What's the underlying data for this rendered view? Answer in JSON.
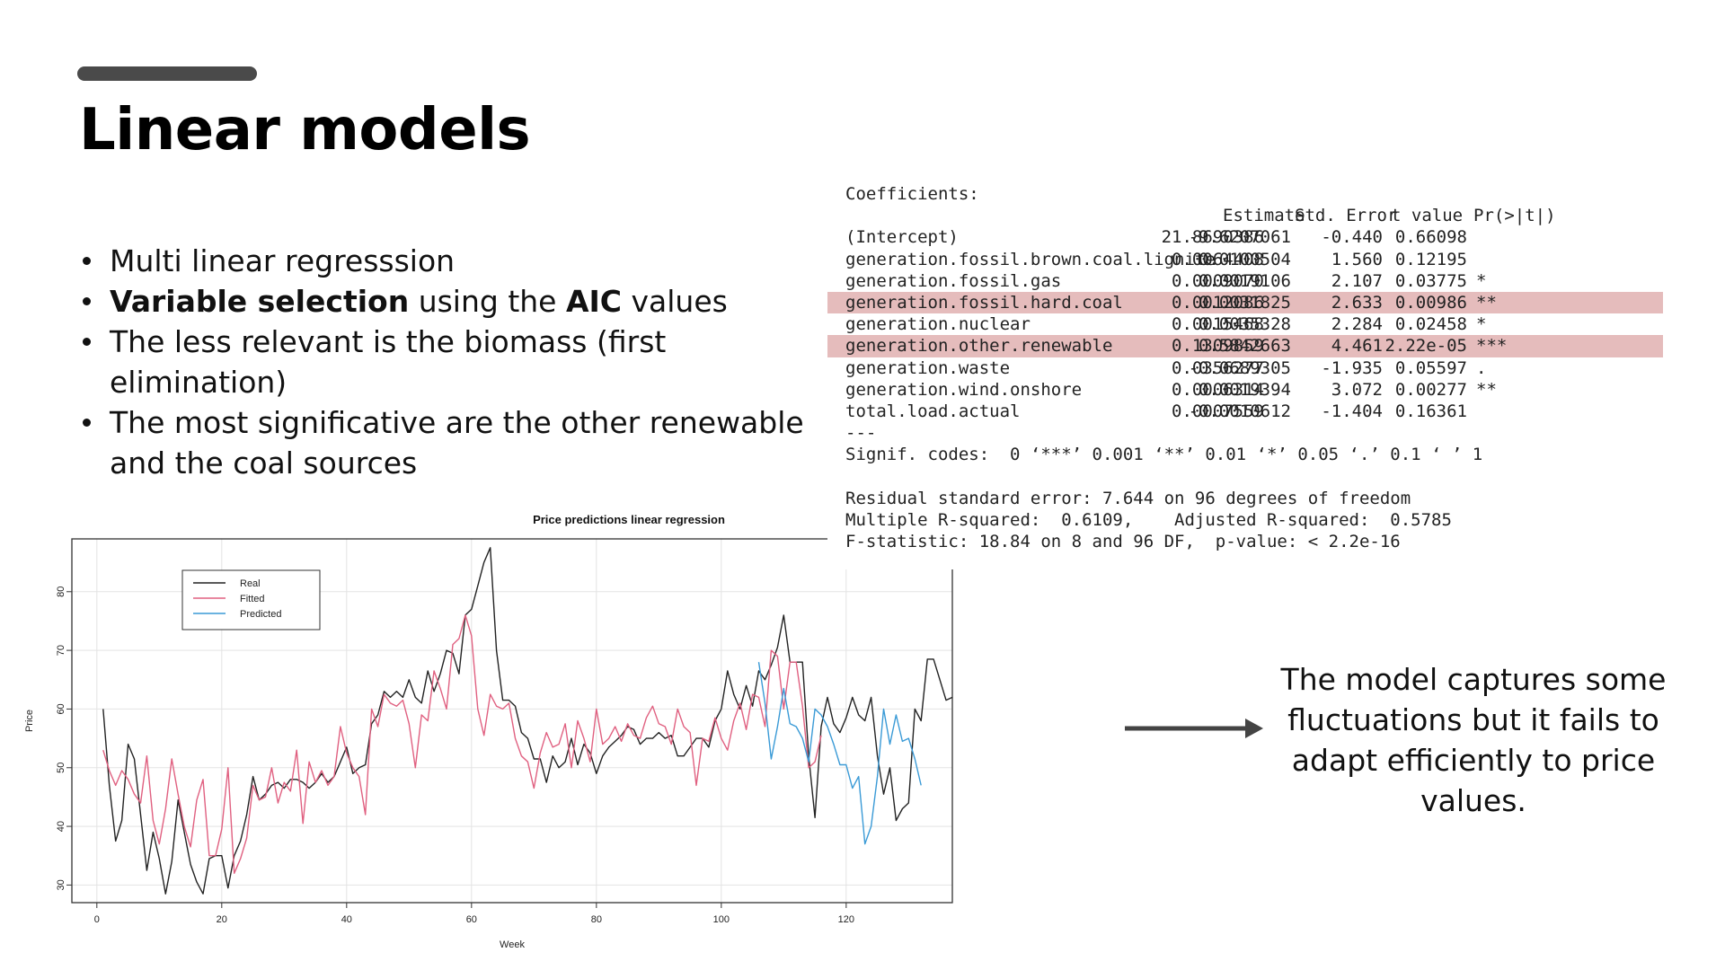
{
  "slide": {
    "title": "Linear models",
    "bullets": [
      {
        "parts": [
          {
            "text": "Multi linear regresssion",
            "bold": false
          }
        ]
      },
      {
        "parts": [
          {
            "text": "Variable selection",
            "bold": true
          },
          {
            "text": " using the ",
            "bold": false
          },
          {
            "text": "AIC",
            "bold": true
          },
          {
            "text": " values",
            "bold": false
          }
        ]
      },
      {
        "parts": [
          {
            "text": "The less relevant is the biomass (first elimination)",
            "bold": false
          }
        ]
      },
      {
        "parts": [
          {
            "text": "The most significative are the other renewable and the coal sources",
            "bold": false
          }
        ]
      }
    ],
    "conclusion": "The model captures some fluctuations but it fails to adapt efficiently to price values."
  },
  "regression_output": {
    "header": "Coefficients:",
    "columns": [
      "Estimate",
      "Std. Error",
      "t value",
      "Pr(>|t|)"
    ],
    "rows": [
      {
        "name": "(Intercept)",
        "estimate": "-9.6207061",
        "std_error": "21.8690386",
        "t_value": "-0.440",
        "p_value": "0.66098",
        "signif": "",
        "highlight": false
      },
      {
        "name": "generation.fossil.brown.coal.lignite",
        "estimate": "0.0100504",
        "std_error": "0.0064408",
        "t_value": "1.560",
        "p_value": "0.12195",
        "signif": "",
        "highlight": false
      },
      {
        "name": "generation.fossil.gas",
        "estimate": "0.0019106",
        "std_error": "0.0009070",
        "t_value": "2.107",
        "p_value": "0.03775",
        "signif": "*",
        "highlight": false
      },
      {
        "name": "generation.fossil.hard.coal",
        "estimate": "0.0031825",
        "std_error": "0.0012086",
        "t_value": "2.633",
        "p_value": "0.00986",
        "signif": "**",
        "highlight": true
      },
      {
        "name": "generation.nuclear",
        "estimate": "0.0035328",
        "std_error": "0.0015468",
        "t_value": "2.284",
        "p_value": "0.02458",
        "signif": "*",
        "highlight": false
      },
      {
        "name": "generation.other.renewable",
        "estimate": "0.5842663",
        "std_error": "0.1309859",
        "t_value": "4.461",
        "p_value": "2.22e-05",
        "signif": "***",
        "highlight": true
      },
      {
        "name": "generation.waste",
        "estimate": "-0.0689305",
        "std_error": "0.0356277",
        "t_value": "-1.935",
        "p_value": "0.05597",
        "signif": ".",
        "highlight": false
      },
      {
        "name": "generation.wind.onshore",
        "estimate": "0.0019394",
        "std_error": "0.0006314",
        "t_value": "3.072",
        "p_value": "0.00277",
        "signif": "**",
        "highlight": false
      },
      {
        "name": "total.load.actual",
        "estimate": "-0.0010612",
        "std_error": "0.0007559",
        "t_value": "-1.404",
        "p_value": "0.16361",
        "signif": "",
        "highlight": false
      }
    ],
    "separator": "---",
    "signif_codes": "Signif. codes:  0 ‘***’ 0.001 ‘**’ 0.01 ‘*’ 0.05 ‘.’ 0.1 ‘ ’ 1",
    "residual_se": "Residual standard error: 7.644 on 96 degrees of freedom",
    "r_squared": "Multiple R-squared:  0.6109,\tAdjusted R-squared:  0.5785",
    "f_statistic": "F-statistic: 18.84 on 8 and 96 DF,  p-value: < 2.2e-16"
  },
  "chart_data": {
    "type": "line",
    "title": "Price predictions linear regression",
    "xlabel": "Week",
    "ylabel": "Price",
    "xlim": [
      -4,
      137
    ],
    "ylim": [
      27,
      89
    ],
    "xticks": [
      0,
      20,
      40,
      60,
      80,
      100,
      120
    ],
    "yticks": [
      30,
      40,
      50,
      60,
      70,
      80
    ],
    "grid": true,
    "legend_position": "top-left",
    "series": [
      {
        "name": "Real",
        "color": "#222222",
        "x_start": 1,
        "values": [
          60,
          47,
          37.5,
          41,
          54,
          51.5,
          42,
          32.5,
          39,
          34.5,
          28.5,
          34,
          44.5,
          39,
          33.5,
          30.5,
          28.5,
          34.5,
          35,
          35,
          29.5,
          35,
          37.5,
          42,
          48.5,
          44.5,
          45.5,
          47,
          47.5,
          46.5,
          48,
          48,
          47.5,
          46.5,
          47.5,
          49,
          47.5,
          48.5,
          51,
          53.5,
          49,
          50,
          50.5,
          57.5,
          59,
          63,
          62,
          63,
          62,
          65,
          62,
          61,
          66.5,
          63,
          66,
          70,
          69.5,
          66,
          76,
          77,
          81,
          85,
          87.5,
          70,
          61.5,
          61.5,
          60.5,
          56,
          55,
          51.5,
          51.5,
          47.5,
          52,
          50,
          51,
          55,
          50.5,
          54,
          52.5,
          49,
          52,
          53.5,
          54.5,
          55.5,
          57,
          56.5,
          54,
          55,
          55,
          56,
          55,
          55.5,
          52,
          52,
          53.5,
          55,
          55,
          53.5,
          58,
          60,
          66.5,
          62.5,
          60,
          64,
          60.5,
          66.5,
          65,
          67.5,
          70.5,
          76,
          68,
          68,
          68,
          52,
          41.5,
          57,
          62,
          57.5,
          56,
          58.5,
          62,
          59,
          58,
          62,
          52,
          45.5,
          50,
          41,
          43,
          44,
          60,
          58,
          68.5,
          68.5,
          65,
          61.5,
          62
        ]
      },
      {
        "name": "Fitted",
        "color": "#e06080",
        "x_start": 1,
        "values": [
          53,
          49.5,
          47,
          49.5,
          48,
          45.5,
          44,
          52,
          41,
          37,
          43,
          51.5,
          45.5,
          40,
          36.5,
          44.5,
          48,
          35,
          35,
          39.5,
          50,
          32,
          34.5,
          38,
          47,
          44.5,
          45,
          50,
          44,
          47.5,
          46,
          53,
          40.5,
          51,
          47.5,
          49.5,
          47,
          48.5,
          57,
          52.5,
          50,
          48.5,
          42,
          60,
          57,
          62.5,
          61,
          60.5,
          61.5,
          57.5,
          50,
          59,
          58,
          66.5,
          63.5,
          60,
          71,
          72,
          76,
          72.5,
          60,
          55.5,
          62.5,
          60.5,
          60,
          61,
          55,
          52,
          51,
          46.5,
          52.5,
          56,
          53.5,
          54,
          57.5,
          50,
          58,
          55,
          51,
          60,
          54,
          55,
          57,
          54.5,
          57.5,
          55.5,
          55,
          58.5,
          60.5,
          57.5,
          57,
          54,
          60,
          57,
          56,
          47,
          55,
          54.5,
          58.5,
          55,
          53,
          58,
          61,
          56.5,
          62.5,
          62,
          57,
          70,
          69,
          60,
          68,
          68,
          60.5,
          50,
          51,
          55.5
        ]
      },
      {
        "name": "Predicted",
        "color": "#3a9ad6",
        "x_start": 106,
        "values": [
          68,
          61,
          51.5,
          57,
          63.5,
          57.5,
          57,
          55,
          51,
          60,
          59,
          57,
          54,
          50.5,
          50.5,
          46.5,
          48.5,
          37,
          40,
          48.5,
          60,
          54,
          59,
          54.5,
          55,
          51.5,
          47
        ]
      }
    ]
  }
}
